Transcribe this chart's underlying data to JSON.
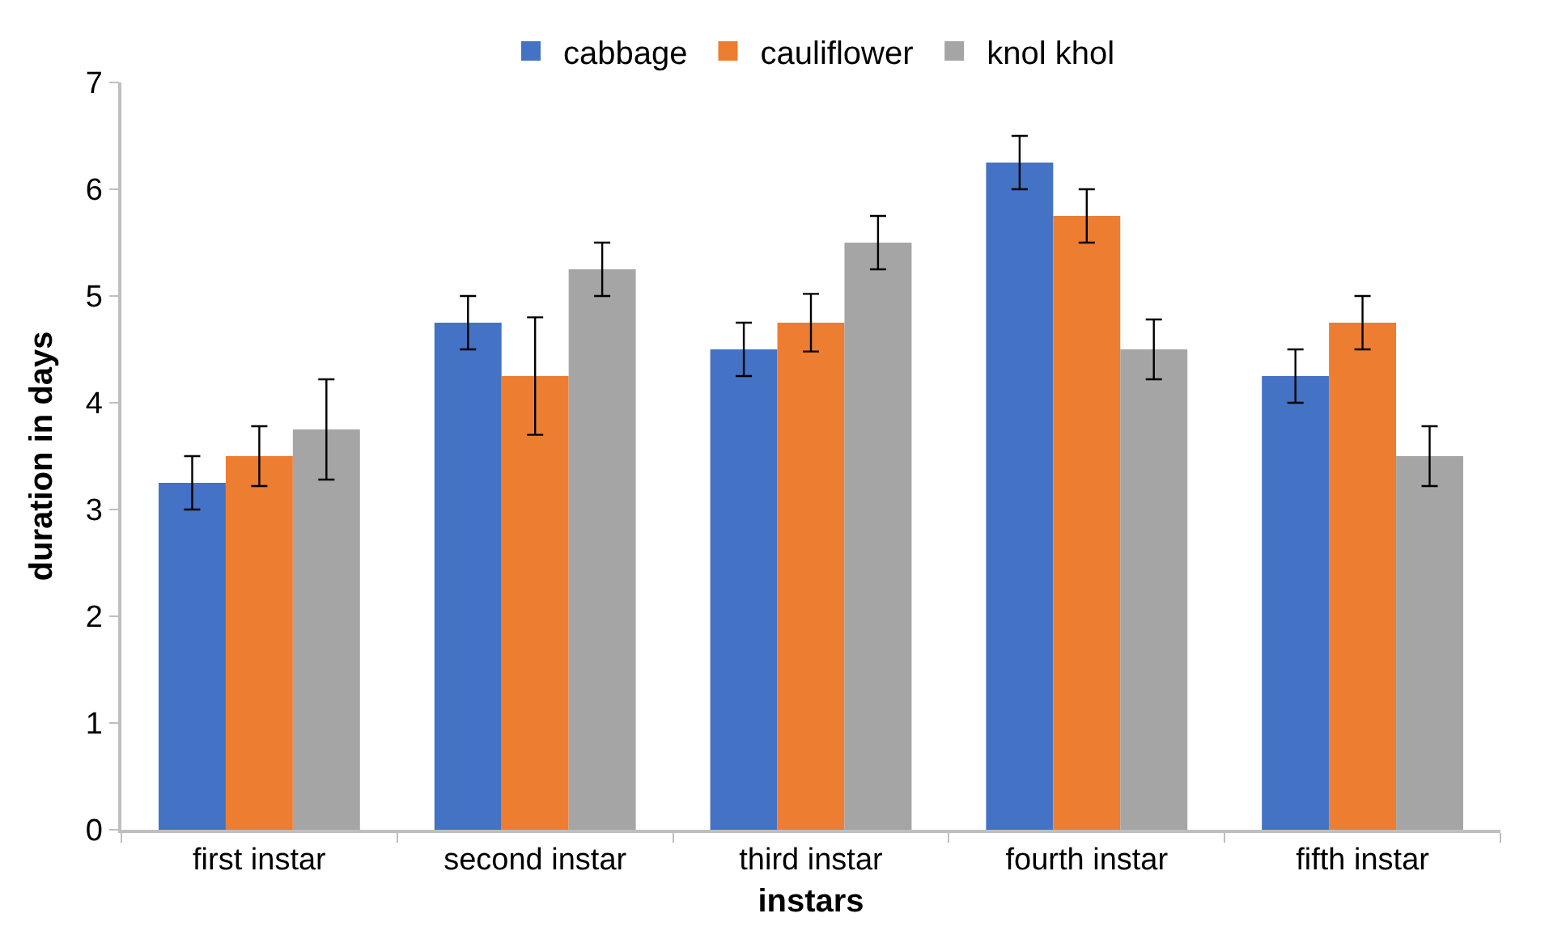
{
  "chart_data": {
    "type": "bar",
    "xlabel": "instars",
    "ylabel": "duration in days",
    "categories": [
      "first instar",
      "second instar",
      "third instar",
      "fourth instar",
      "fifth instar"
    ],
    "series": [
      {
        "name": "cabbage",
        "color": "#4472c4",
        "values": [
          3.25,
          4.75,
          4.5,
          6.25,
          4.25
        ],
        "errors": [
          0.25,
          0.25,
          0.25,
          0.25,
          0.25
        ]
      },
      {
        "name": "cauliflower",
        "color": "#ed7d31",
        "values": [
          3.5,
          4.25,
          4.75,
          5.75,
          4.75
        ],
        "errors": [
          0.28,
          0.55,
          0.27,
          0.25,
          0.25
        ]
      },
      {
        "name": "knol khol",
        "color": "#a5a5a5",
        "values": [
          3.75,
          5.25,
          5.5,
          4.5,
          3.5
        ],
        "errors": [
          0.47,
          0.25,
          0.25,
          0.28,
          0.28
        ]
      }
    ],
    "ylim": [
      0,
      7
    ],
    "yticks": [
      0,
      1,
      2,
      3,
      4,
      5,
      6,
      7
    ],
    "grid": false,
    "legend": "top"
  }
}
